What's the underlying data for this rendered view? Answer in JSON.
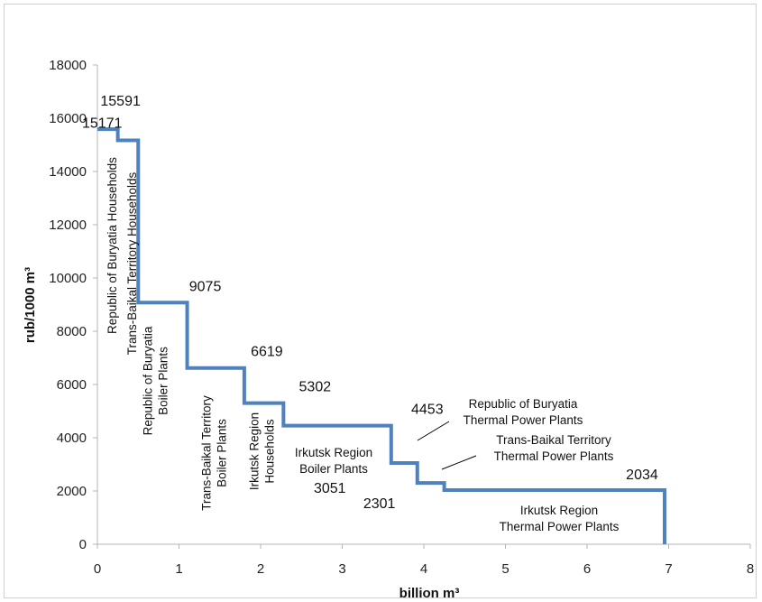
{
  "chart_data": {
    "type": "line",
    "step": true,
    "xlabel": "billion m³",
    "ylabel": "rub/1000 m³",
    "xlim": [
      0,
      8
    ],
    "ylim": [
      0,
      18000
    ],
    "xticks": [
      "0",
      "1",
      "2",
      "3",
      "4",
      "5",
      "6",
      "7",
      "8"
    ],
    "yticks": [
      "0",
      "2000",
      "4000",
      "6000",
      "8000",
      "10000",
      "12000",
      "14000",
      "16000",
      "18000"
    ],
    "grid": false,
    "line_color": "#4f81bd",
    "segments": [
      {
        "x0": 0.0,
        "x1": 0.25,
        "value": 15591,
        "value_label": "15591",
        "label": [
          "Republic of Buryatia Households"
        ],
        "rotated": true
      },
      {
        "x0": 0.25,
        "x1": 0.5,
        "value": 15171,
        "value_label": "15171",
        "label": [
          "Trans-Baikal Territory Households"
        ],
        "rotated": true
      },
      {
        "x0": 0.5,
        "x1": 1.1,
        "value": 9075,
        "value_label": "9075",
        "label": [
          "Republic of Buryatia",
          "Boiler Plants"
        ],
        "rotated": true
      },
      {
        "x0": 1.1,
        "x1": 1.8,
        "value": 6619,
        "value_label": "6619",
        "label": [
          "Trans-Baikal Territory",
          "Boiler Plants"
        ],
        "rotated": true
      },
      {
        "x0": 1.8,
        "x1": 2.28,
        "value": 5302,
        "value_label": "5302",
        "label": [
          "Irkutsk Region",
          "Households"
        ],
        "rotated": true
      },
      {
        "x0": 2.28,
        "x1": 3.6,
        "value": 4453,
        "value_label": "4453",
        "label": [
          "Irkutsk Region",
          "Boiler Plants"
        ],
        "rotated": false
      },
      {
        "x0": 3.6,
        "x1": 3.92,
        "value": 3051,
        "value_label": "3051",
        "label": [
          "Republic of Buryatia",
          "Thermal Power Plants"
        ],
        "rotated": false
      },
      {
        "x0": 3.92,
        "x1": 4.25,
        "value": 2301,
        "value_label": "2301",
        "label": [
          "Trans-Baikal Territory",
          "Thermal Power Plants"
        ],
        "rotated": false
      },
      {
        "x0": 4.25,
        "x1": 6.95,
        "value": 2034,
        "value_label": "2034",
        "label": [
          "Irkutsk Region",
          "Thermal Power Plants"
        ],
        "rotated": false
      }
    ]
  }
}
